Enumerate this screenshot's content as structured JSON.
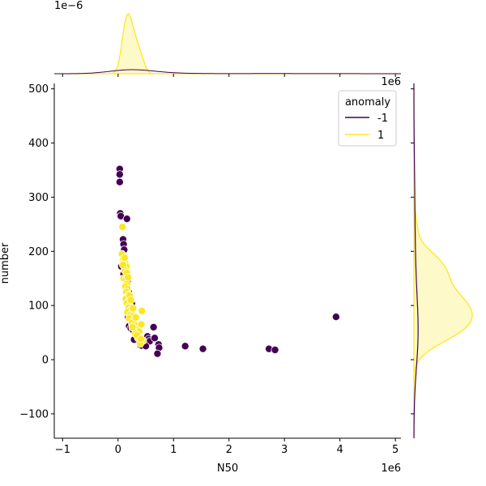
{
  "chart_data": {
    "type": "scatter",
    "title": "",
    "xlabel": "N50",
    "ylabel": "number",
    "x_offset_label": "1e6",
    "top_marginal_offset_label": "1e−6",
    "right_marginal_offset_label": "1e6",
    "xlim": [
      -1.15,
      5.1
    ],
    "ylim": [
      -145,
      510
    ],
    "x_ticks": [
      -1,
      0,
      1,
      2,
      3,
      4,
      5
    ],
    "x_tick_labels": [
      "−1",
      "0",
      "1",
      "2",
      "3",
      "4",
      "5"
    ],
    "y_ticks": [
      -100,
      0,
      100,
      200,
      300,
      400,
      500
    ],
    "y_tick_labels": [
      "−100",
      "0",
      "100",
      "200",
      "300",
      "400",
      "500"
    ],
    "grid": false,
    "legend": {
      "title": "anomaly",
      "placement": "top-right",
      "entries": [
        {
          "label": "-1",
          "color": "#440154"
        },
        {
          "label": "1",
          "color": "#fde725"
        }
      ]
    },
    "series": [
      {
        "name": "-1",
        "color": "#440154",
        "points": [
          [
            0.03,
            352
          ],
          [
            0.03,
            342
          ],
          [
            0.03,
            328
          ],
          [
            0.04,
            270
          ],
          [
            0.05,
            265
          ],
          [
            0.16,
            260
          ],
          [
            0.09,
            222
          ],
          [
            0.1,
            213
          ],
          [
            0.11,
            203
          ],
          [
            0.06,
            172
          ],
          [
            0.12,
            165
          ],
          [
            0.1,
            158
          ],
          [
            0.17,
            143
          ],
          [
            0.15,
            138
          ],
          [
            0.19,
            125
          ],
          [
            0.22,
            112
          ],
          [
            0.25,
            103
          ],
          [
            0.2,
            95
          ],
          [
            0.24,
            87
          ],
          [
            0.18,
            78
          ],
          [
            0.22,
            73
          ],
          [
            0.28,
            70
          ],
          [
            0.2,
            62
          ],
          [
            0.23,
            58
          ],
          [
            0.27,
            55
          ],
          [
            0.32,
            50
          ],
          [
            0.37,
            52
          ],
          [
            0.29,
            37
          ],
          [
            0.4,
            27
          ],
          [
            0.43,
            26
          ],
          [
            0.53,
            43
          ],
          [
            0.55,
            38
          ],
          [
            0.57,
            34
          ],
          [
            0.64,
            60
          ],
          [
            0.66,
            40
          ],
          [
            0.73,
            28
          ],
          [
            0.74,
            22
          ],
          [
            0.71,
            11
          ],
          [
            1.21,
            25
          ],
          [
            1.53,
            20
          ],
          [
            2.72,
            20
          ],
          [
            2.83,
            18
          ],
          [
            3.93,
            79
          ],
          [
            0.5,
            25
          ],
          [
            0.35,
            45
          ]
        ]
      },
      {
        "name": "1",
        "color": "#fde725",
        "points": [
          [
            0.08,
            245
          ],
          [
            0.07,
            195
          ],
          [
            0.09,
            185
          ],
          [
            0.11,
            180
          ],
          [
            0.13,
            178
          ],
          [
            0.15,
            172
          ],
          [
            0.12,
            165
          ],
          [
            0.1,
            150
          ],
          [
            0.14,
            148
          ],
          [
            0.16,
            140
          ],
          [
            0.13,
            135
          ],
          [
            0.17,
            130
          ],
          [
            0.15,
            125
          ],
          [
            0.19,
            120
          ],
          [
            0.18,
            115
          ],
          [
            0.14,
            112
          ],
          [
            0.2,
            108
          ],
          [
            0.16,
            104
          ],
          [
            0.21,
            100
          ],
          [
            0.19,
            96
          ],
          [
            0.23,
            92
          ],
          [
            0.17,
            88
          ],
          [
            0.24,
            85
          ],
          [
            0.22,
            82
          ],
          [
            0.26,
            80
          ],
          [
            0.2,
            76
          ],
          [
            0.28,
            72
          ],
          [
            0.25,
            68
          ],
          [
            0.3,
            65
          ],
          [
            0.33,
            62
          ],
          [
            0.29,
            58
          ],
          [
            0.35,
            55
          ],
          [
            0.38,
            52
          ],
          [
            0.31,
            48
          ],
          [
            0.42,
            65
          ],
          [
            0.43,
            90
          ],
          [
            0.36,
            40
          ],
          [
            0.45,
            35
          ],
          [
            0.4,
            30
          ],
          [
            0.12,
            188
          ],
          [
            0.09,
            175
          ],
          [
            0.16,
            160
          ],
          [
            0.18,
            152
          ],
          [
            0.21,
            118
          ],
          [
            0.23,
            110
          ],
          [
            0.27,
            95
          ],
          [
            0.32,
            78
          ],
          [
            0.26,
            60
          ],
          [
            0.34,
            45
          ],
          [
            0.41,
            38
          ]
        ]
      }
    ]
  }
}
